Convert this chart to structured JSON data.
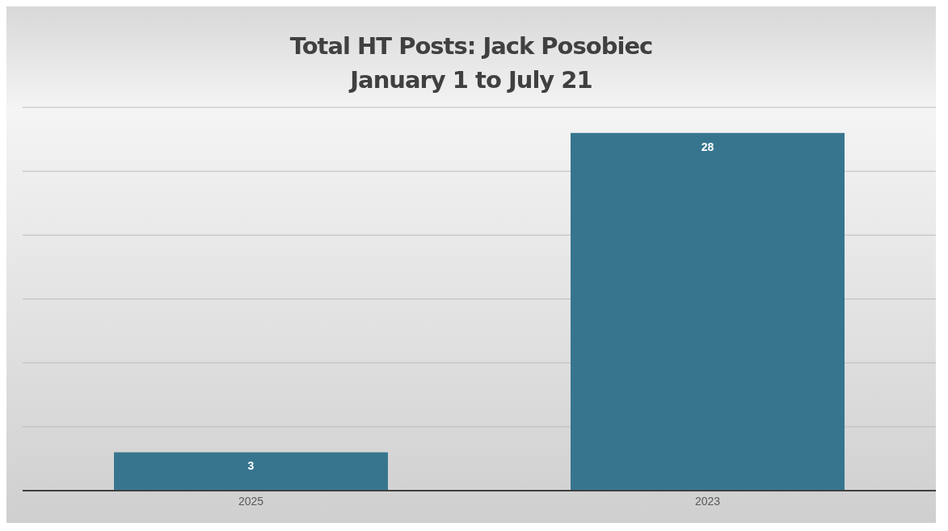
{
  "chart_data": {
    "type": "bar",
    "title": "Total HT Posts: Jack Posobiec",
    "subtitle": "January 1 to July 21",
    "categories": [
      "2025",
      "2023"
    ],
    "values": [
      3,
      28
    ],
    "color": "#37758f",
    "ylim": [
      0,
      30
    ],
    "grid": "y",
    "tick_labels": "x",
    "data_labels": true
  }
}
